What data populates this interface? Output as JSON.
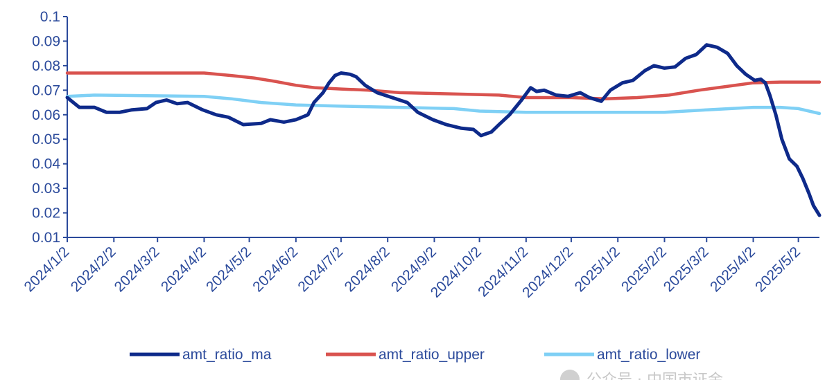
{
  "chart_data": {
    "type": "line",
    "title": "",
    "xlabel": "",
    "ylabel": "",
    "ylim": [
      0.01,
      0.1
    ],
    "yticks": [
      "0.01",
      "0.02",
      "0.03",
      "0.04",
      "0.05",
      "0.06",
      "0.07",
      "0.08",
      "0.09",
      "0.1"
    ],
    "xticks": [
      "2024/1/2",
      "2024/2/2",
      "2024/3/2",
      "2024/4/2",
      "2024/5/2",
      "2024/6/2",
      "2024/7/2",
      "2024/8/2",
      "2024/9/2",
      "2024/10/2",
      "2024/11/2",
      "2024/12/2",
      "2025/1/2",
      "2025/2/2",
      "2025/3/2",
      "2025/4/2",
      "2025/5/2"
    ],
    "xrange": [
      "2024/1/2",
      "2025/5/16"
    ],
    "grid": false,
    "legend_position": "bottom",
    "series": [
      {
        "name": "amt_ratio_ma",
        "color": "#0e2a8a",
        "points": [
          [
            "2024/1/2",
            0.067
          ],
          [
            "2024/1/10",
            0.063
          ],
          [
            "2024/1/20",
            0.063
          ],
          [
            "2024/1/28",
            0.061
          ],
          [
            "2024/2/6",
            0.061
          ],
          [
            "2024/2/14",
            0.062
          ],
          [
            "2024/2/24",
            0.0625
          ],
          [
            "2024/3/1",
            0.065
          ],
          [
            "2024/3/8",
            0.066
          ],
          [
            "2024/3/15",
            0.0645
          ],
          [
            "2024/3/22",
            0.065
          ],
          [
            "2024/4/1",
            0.062
          ],
          [
            "2024/4/10",
            0.06
          ],
          [
            "2024/4/18",
            0.059
          ],
          [
            "2024/4/28",
            0.056
          ],
          [
            "2024/5/10",
            0.0565
          ],
          [
            "2024/5/16",
            0.058
          ],
          [
            "2024/5/25",
            0.057
          ],
          [
            "2024/6/2",
            0.058
          ],
          [
            "2024/6/10",
            0.06
          ],
          [
            "2024/6/14",
            0.065
          ],
          [
            "2024/6/20",
            0.069
          ],
          [
            "2024/6/24",
            0.073
          ],
          [
            "2024/6/28",
            0.076
          ],
          [
            "2024/7/2",
            0.077
          ],
          [
            "2024/7/8",
            0.0765
          ],
          [
            "2024/7/12",
            0.0755
          ],
          [
            "2024/7/18",
            0.072
          ],
          [
            "2024/7/26",
            0.069
          ],
          [
            "2024/8/5",
            0.067
          ],
          [
            "2024/8/15",
            0.065
          ],
          [
            "2024/8/22",
            0.061
          ],
          [
            "2024/9/1",
            0.058
          ],
          [
            "2024/9/10",
            0.056
          ],
          [
            "2024/9/20",
            0.0545
          ],
          [
            "2024/9/28",
            0.054
          ],
          [
            "2024/10/3",
            0.0515
          ],
          [
            "2024/10/10",
            0.053
          ],
          [
            "2024/10/15",
            0.056
          ],
          [
            "2024/10/22",
            0.06
          ],
          [
            "2024/10/30",
            0.066
          ],
          [
            "2024/11/5",
            0.071
          ],
          [
            "2024/11/9",
            0.0695
          ],
          [
            "2024/11/14",
            0.07
          ],
          [
            "2024/11/22",
            0.068
          ],
          [
            "2024/11/30",
            0.0675
          ],
          [
            "2024/12/8",
            0.069
          ],
          [
            "2024/12/14",
            0.067
          ],
          [
            "2024/12/22",
            0.0655
          ],
          [
            "2024/12/28",
            0.07
          ],
          [
            "2025/1/5",
            0.073
          ],
          [
            "2025/1/12",
            0.074
          ],
          [
            "2025/1/20",
            0.078
          ],
          [
            "2025/1/26",
            0.08
          ],
          [
            "2025/2/2",
            0.079
          ],
          [
            "2025/2/9",
            0.0795
          ],
          [
            "2025/2/16",
            0.083
          ],
          [
            "2025/2/23",
            0.0845
          ],
          [
            "2025/3/2",
            0.0885
          ],
          [
            "2025/3/9",
            0.0875
          ],
          [
            "2025/3/16",
            0.085
          ],
          [
            "2025/3/22",
            0.08
          ],
          [
            "2025/3/28",
            0.0765
          ],
          [
            "2025/4/3",
            0.074
          ],
          [
            "2025/4/7",
            0.0745
          ],
          [
            "2025/4/10",
            0.073
          ],
          [
            "2025/4/13",
            0.068
          ],
          [
            "2025/4/17",
            0.06
          ],
          [
            "2025/4/21",
            0.05
          ],
          [
            "2025/4/26",
            0.042
          ],
          [
            "2025/5/1",
            0.039
          ],
          [
            "2025/5/5",
            0.034
          ],
          [
            "2025/5/9",
            0.028
          ],
          [
            "2025/5/12",
            0.023
          ],
          [
            "2025/5/16",
            0.019
          ]
        ]
      },
      {
        "name": "amt_ratio_upper",
        "color": "#d9534f",
        "points": [
          [
            "2024/1/2",
            0.077
          ],
          [
            "2024/4/2",
            0.077
          ],
          [
            "2024/4/20",
            0.076
          ],
          [
            "2024/5/5",
            0.075
          ],
          [
            "2024/5/20",
            0.0735
          ],
          [
            "2024/6/2",
            0.072
          ],
          [
            "2024/6/15",
            0.071
          ],
          [
            "2024/7/2",
            0.0705
          ],
          [
            "2024/7/20",
            0.07
          ],
          [
            "2024/8/10",
            0.069
          ],
          [
            "2024/9/15",
            0.0685
          ],
          [
            "2024/10/15",
            0.068
          ],
          [
            "2024/11/2",
            0.067
          ],
          [
            "2024/12/2",
            0.067
          ],
          [
            "2024/12/25",
            0.0665
          ],
          [
            "2025/1/15",
            0.067
          ],
          [
            "2025/2/5",
            0.068
          ],
          [
            "2025/2/25",
            0.07
          ],
          [
            "2025/3/15",
            0.0715
          ],
          [
            "2025/4/2",
            0.073
          ],
          [
            "2025/4/20",
            0.0733
          ],
          [
            "2025/5/16",
            0.0733
          ]
        ]
      },
      {
        "name": "amt_ratio_lower",
        "color": "#7fd0f5",
        "points": [
          [
            "2024/1/2",
            0.0675
          ],
          [
            "2024/1/20",
            0.068
          ],
          [
            "2024/4/2",
            0.0675
          ],
          [
            "2024/4/20",
            0.0665
          ],
          [
            "2024/5/10",
            0.065
          ],
          [
            "2024/6/2",
            0.064
          ],
          [
            "2024/7/2",
            0.0635
          ],
          [
            "2024/8/10",
            0.063
          ],
          [
            "2024/9/15",
            0.0625
          ],
          [
            "2024/10/2",
            0.0615
          ],
          [
            "2024/11/2",
            0.061
          ],
          [
            "2025/1/2",
            0.061
          ],
          [
            "2025/2/2",
            0.061
          ],
          [
            "2025/3/2",
            0.062
          ],
          [
            "2025/4/2",
            0.063
          ],
          [
            "2025/4/20",
            0.063
          ],
          [
            "2025/5/2",
            0.0625
          ],
          [
            "2025/5/16",
            0.0605
          ]
        ]
      }
    ]
  },
  "watermark": "公众号 · 中国市证金"
}
